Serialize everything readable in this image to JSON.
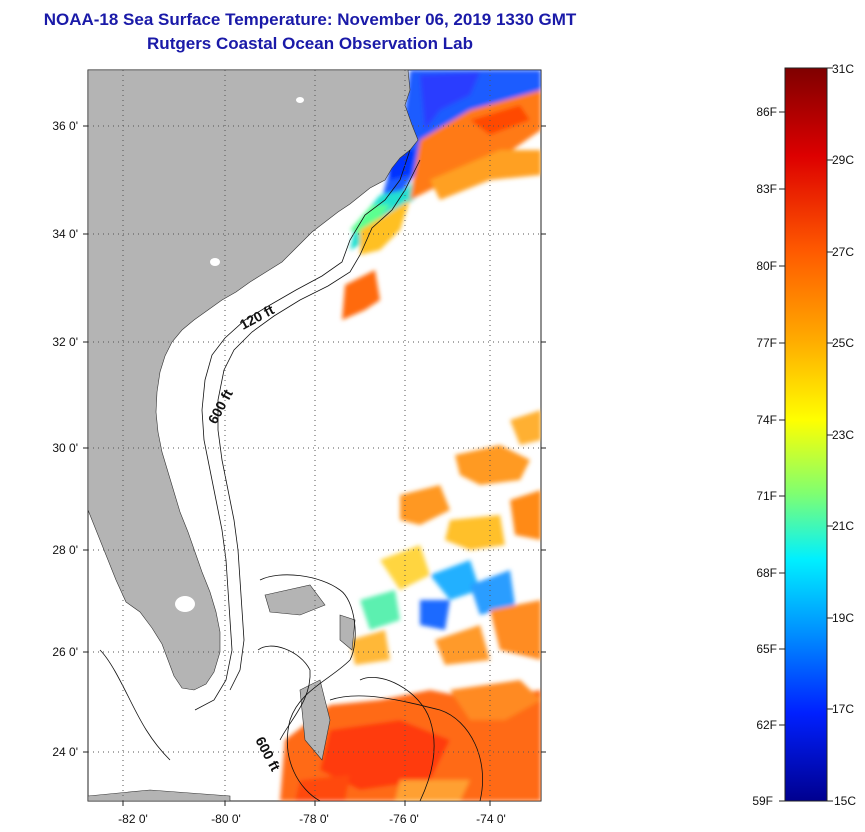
{
  "title": "NOAA-18 Sea Surface Temperature:  November 06, 2019 1330 GMT",
  "subtitle": "Rutgers Coastal Ocean Observation Lab",
  "map": {
    "lat_labels": [
      "36 0'",
      "34 0'",
      "32 0'",
      "30 0'",
      "28 0'",
      "26 0'",
      "24 0'"
    ],
    "lon_labels": [
      "-82 0'",
      "-80 0'",
      "-78 0'",
      "-76 0'",
      "-74 0'"
    ],
    "contour_labels": [
      "120 ft",
      "600 ft",
      "600 ft"
    ],
    "colors": {
      "land": "#b4b4b4",
      "ocean_nodata": "#ffffff",
      "grid": "#444444"
    }
  },
  "colorbar": {
    "celsius": [
      "31C",
      "29C",
      "27C",
      "25C",
      "23C",
      "21C",
      "19C",
      "17C",
      "15C"
    ],
    "fahrenheit": [
      "86F",
      "83F",
      "80F",
      "77F",
      "74F",
      "71F",
      "68F",
      "65F",
      "62F",
      "59F"
    ],
    "stops": [
      "#7f0000",
      "#ff0000",
      "#ff8000",
      "#ffff00",
      "#80ff80",
      "#00ffff",
      "#0080ff",
      "#0000ff",
      "#00008f"
    ]
  }
}
